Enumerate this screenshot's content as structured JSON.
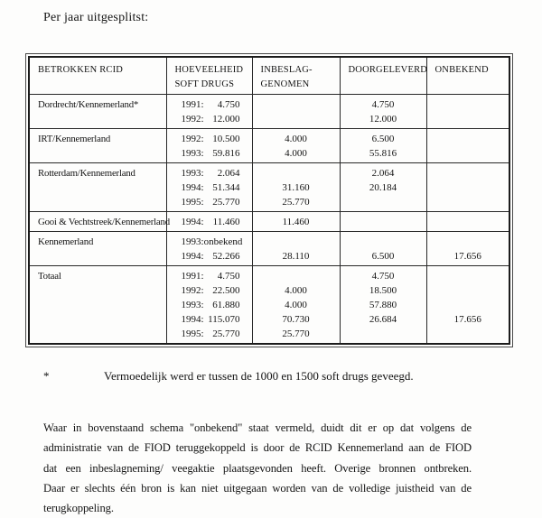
{
  "page": {
    "title": "Per jaar uitgesplitst:",
    "footnote": {
      "marker": "*",
      "text": "Vermoedelijk werd er tussen de 1000 en 1500 soft drugs geveegd."
    },
    "paragraph_lines": [
      "Waar in bovenstaand schema \"onbekend\" staat vermeld, duidt dit er op dat volgens de",
      "administratie van de FIOD teruggekoppeld is door de RCID Kennemerland aan de FIOD",
      "dat een inbeslagneming/ veegaktie plaatsgevonden heeft. Overige bronnen ontbreken.",
      "Daar er slechts één bron is kan niet uitgegaan worden van de volledige juistheid van de",
      "terugkoppeling."
    ]
  },
  "colors": {
    "ink": "#141414",
    "paper": "#fdfdfc",
    "table_border": "#272727"
  },
  "table": {
    "headers": [
      {
        "id": "betrokken-rcid",
        "lines": [
          "BETROKKEN RCID"
        ]
      },
      {
        "id": "hoeveelheid-soft-drugs",
        "lines": [
          "HOEVEELHEID",
          "SOFT DRUGS"
        ]
      },
      {
        "id": "inbeslaggenomen",
        "lines": [
          "INBESLAG-",
          "GENOMEN"
        ]
      },
      {
        "id": "doorgeleverd",
        "lines": [
          "DOORGELEVERD"
        ]
      },
      {
        "id": "onbekend",
        "lines": [
          "ONBEKEND"
        ]
      }
    ],
    "rows": [
      {
        "rcid": "Dordrecht/Kennemerland*",
        "lines": [
          {
            "year": "1991:",
            "qty": "4.750",
            "seized": "",
            "delivered": "4.750",
            "unknown": ""
          },
          {
            "year": "1992:",
            "qty": "12.000",
            "seized": "",
            "delivered": "12.000",
            "unknown": ""
          }
        ]
      },
      {
        "rcid": "IRT/Kennemerland",
        "lines": [
          {
            "year": "1992:",
            "qty": "10.500",
            "seized": "4.000",
            "delivered": "6.500",
            "unknown": ""
          },
          {
            "year": "1993:",
            "qty": "59.816",
            "seized": "4.000",
            "delivered": "55.816",
            "unknown": ""
          }
        ]
      },
      {
        "rcid": "Rotterdam/Kennemerland",
        "lines": [
          {
            "year": "1993:",
            "qty": "2.064",
            "seized": "",
            "delivered": "2.064",
            "unknown": ""
          },
          {
            "year": "1994:",
            "qty": "51.344",
            "seized": "31.160",
            "delivered": "20.184",
            "unknown": ""
          },
          {
            "year": "1995:",
            "qty": "25.770",
            "seized": "25.770",
            "delivered": "",
            "unknown": ""
          }
        ]
      },
      {
        "rcid": "Gooi & Vechtstreek/Kennemerland",
        "lines": [
          {
            "year": "1994:",
            "qty": "11.460",
            "seized": "11.460",
            "delivered": "",
            "unknown": ""
          }
        ]
      },
      {
        "rcid": "Kennemerland",
        "lines": [
          {
            "year": "1993:",
            "qty": "onbekend",
            "seized": "",
            "delivered": "",
            "unknown": ""
          },
          {
            "year": "1994:",
            "qty": "52.266",
            "seized": "28.110",
            "delivered": "6.500",
            "unknown": "17.656"
          }
        ]
      },
      {
        "rcid": "Totaal",
        "lines": [
          {
            "year": "1991:",
            "qty": "4.750",
            "seized": "",
            "delivered": "4.750",
            "unknown": ""
          },
          {
            "year": "1992:",
            "qty": "22.500",
            "seized": "4.000",
            "delivered": "18.500",
            "unknown": ""
          },
          {
            "year": "1993:",
            "qty": "61.880",
            "seized": "4.000",
            "delivered": "57.880",
            "unknown": ""
          },
          {
            "year": "1994:",
            "qty": "115.070",
            "seized": "70.730",
            "delivered": "26.684",
            "unknown": "17.656"
          },
          {
            "year": "1995:",
            "qty": "25.770",
            "seized": "25.770",
            "delivered": "",
            "unknown": ""
          }
        ]
      }
    ]
  }
}
